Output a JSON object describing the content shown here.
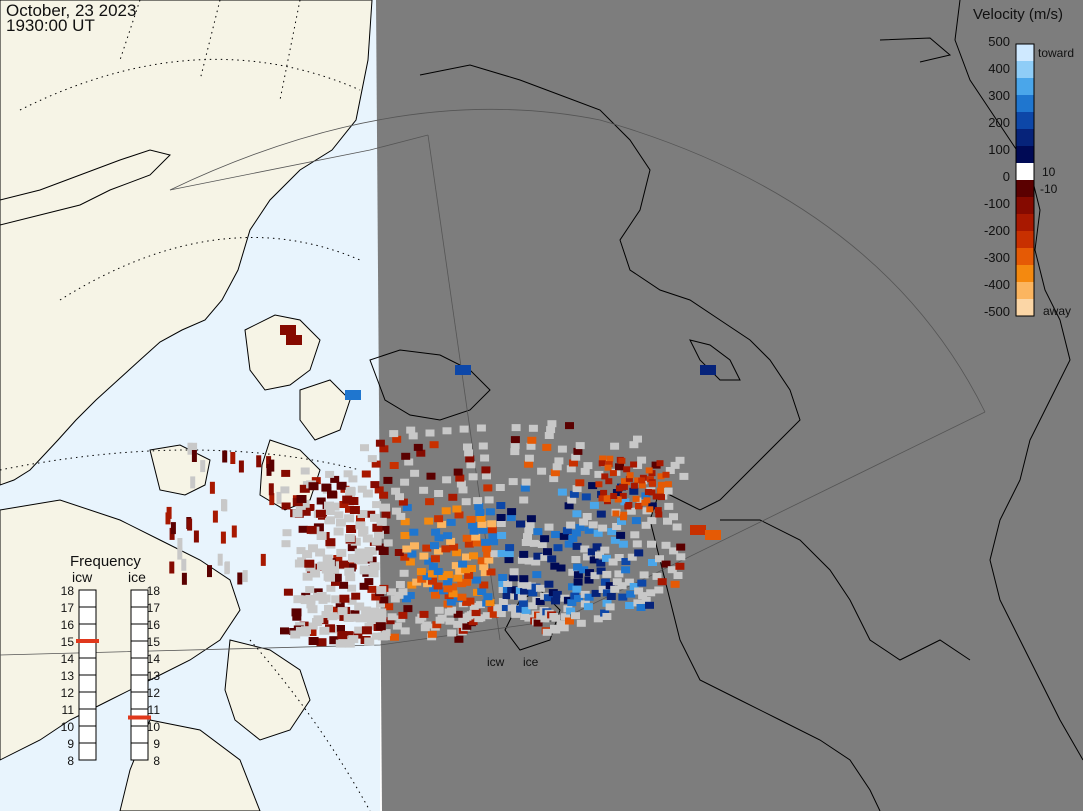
{
  "header": {
    "date": "October, 23 2023",
    "time": "1930:00 UT"
  },
  "colorbar": {
    "title": "Velocity (m/s)",
    "tick_labels": [
      "500",
      "400",
      "300",
      "200",
      "100",
      "0",
      "-100",
      "-200",
      "-300",
      "-400",
      "-500"
    ],
    "tick_values": [
      500,
      400,
      300,
      200,
      100,
      0,
      -100,
      -200,
      -300,
      -400,
      -500
    ],
    "toward_label": "toward",
    "away_label": "away",
    "threshold_pos": "10",
    "threshold_neg": "-10",
    "scale_colors": [
      "#cfe9ff",
      "#8fcdf7",
      "#4aa6ea",
      "#1f76cf",
      "#0d47a8",
      "#06237a",
      "#000a55",
      "#ffffff",
      "#5a0000",
      "#850a00",
      "#a81800",
      "#c83000",
      "#e55a05",
      "#f4890f",
      "#fbb560",
      "#fbd6a6"
    ]
  },
  "frequency": {
    "title": "Frequency",
    "columns": [
      {
        "label": "icw",
        "value": 15
      },
      {
        "label": "ice",
        "value": 10.5
      }
    ],
    "scale_labels": [
      "18",
      "17",
      "16",
      "15",
      "14",
      "13",
      "12",
      "11",
      "10",
      "9",
      "8"
    ],
    "scale_min": 8,
    "scale_max": 18,
    "marker_color": "#e0381c"
  },
  "radars": [
    {
      "label": "icw"
    },
    {
      "label": "ice"
    }
  ],
  "colors": {
    "ocean_day": "#e8f4fd",
    "land_day": "#f6f4e6",
    "night_side": "#7d7d7d",
    "no_data": "#c8c8c8",
    "coast": "#000000"
  }
}
